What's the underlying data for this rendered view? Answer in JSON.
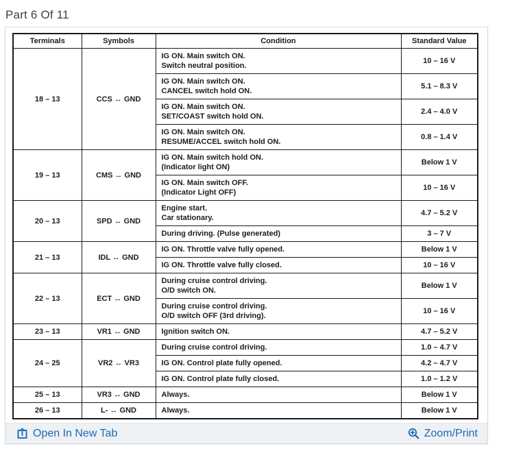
{
  "page": {
    "title": "Part 6 Of 11"
  },
  "colors": {
    "link_blue": "#1e6bb4",
    "title_gray": "#3a4149",
    "table_border_black": "#1a1a1a",
    "footer_bar_bg": "#eef1f4"
  },
  "table": {
    "headers": [
      "Terminals",
      "Symbols",
      "Condition",
      "Standard Value"
    ],
    "groups": [
      {
        "terminals": "18 – 13",
        "symbols": "CCS ↔ GND",
        "rows": [
          {
            "condition_lines": [
              "IG ON. Main switch ON.",
              "Switch neutral position."
            ],
            "standard_value": "10 – 16 V"
          },
          {
            "condition_lines": [
              "IG ON. Main switch ON.",
              "CANCEL switch hold ON."
            ],
            "standard_value": "5.1 – 8.3 V"
          },
          {
            "condition_lines": [
              "IG ON. Main switch ON.",
              "SET/COAST switch hold ON."
            ],
            "standard_value": "2.4 – 4.0 V"
          },
          {
            "condition_lines": [
              "IG ON. Main switch ON.",
              "RESUME/ACCEL switch hold ON."
            ],
            "standard_value": "0.8 – 1.4 V"
          }
        ]
      },
      {
        "terminals": "19 – 13",
        "symbols": "CMS ↔ GND",
        "rows": [
          {
            "condition_lines": [
              "IG ON. Main switch hold ON.",
              "(Indicator light ON)"
            ],
            "standard_value": "Below 1 V"
          },
          {
            "condition_lines": [
              "IG ON. Main switch OFF.",
              "(Indicator Light OFF)"
            ],
            "standard_value": "10 – 16 V"
          }
        ]
      },
      {
        "terminals": "20 – 13",
        "symbols": "SPD ↔ GND",
        "rows": [
          {
            "condition_lines": [
              "Engine start.",
              "Car stationary."
            ],
            "standard_value": "4.7 – 5.2 V"
          },
          {
            "condition_lines": [
              "During driving. (Pulse generated)"
            ],
            "standard_value": "3 – 7 V"
          }
        ]
      },
      {
        "terminals": "21 – 13",
        "symbols": "IDL ↔ GND",
        "rows": [
          {
            "condition_lines": [
              "IG ON. Throttle valve fully opened."
            ],
            "standard_value": "Below 1 V"
          },
          {
            "condition_lines": [
              "IG ON. Throttle valve fully closed."
            ],
            "standard_value": "10 – 16 V"
          }
        ]
      },
      {
        "terminals": "22 – 13",
        "symbols": "ECT ↔ GND",
        "rows": [
          {
            "condition_lines": [
              "During cruise control driving.",
              "O/D switch ON."
            ],
            "standard_value": "Below 1 V"
          },
          {
            "condition_lines": [
              "During cruise control driving.",
              "O/D switch OFF (3rd driving)."
            ],
            "standard_value": "10 – 16 V"
          }
        ]
      },
      {
        "terminals": "23 – 13",
        "symbols": "VR1 ↔ GND",
        "rows": [
          {
            "condition_lines": [
              "Ignition switch ON."
            ],
            "standard_value": "4.7 – 5.2 V"
          }
        ]
      },
      {
        "terminals": "24 – 25",
        "symbols": "VR2 ↔ VR3",
        "rows": [
          {
            "condition_lines": [
              "During cruise control driving."
            ],
            "standard_value": "1.0 – 4.7 V"
          },
          {
            "condition_lines": [
              "IG ON. Control plate fully opened."
            ],
            "standard_value": "4.2 – 4.7 V"
          },
          {
            "condition_lines": [
              "IG ON. Control plate fully closed."
            ],
            "standard_value": "1.0 – 1.2 V"
          }
        ]
      },
      {
        "terminals": "25 – 13",
        "symbols": "VR3 ↔ GND",
        "rows": [
          {
            "condition_lines": [
              "Always."
            ],
            "standard_value": "Below 1 V"
          }
        ]
      },
      {
        "terminals": "26 – 13",
        "symbols": "L- ↔ GND",
        "rows": [
          {
            "condition_lines": [
              "Always."
            ],
            "standard_value": "Below 1 V"
          }
        ]
      }
    ]
  },
  "footer": {
    "open_in_new_tab_label": "Open In New Tab",
    "zoom_print_label": "Zoom/Print"
  }
}
